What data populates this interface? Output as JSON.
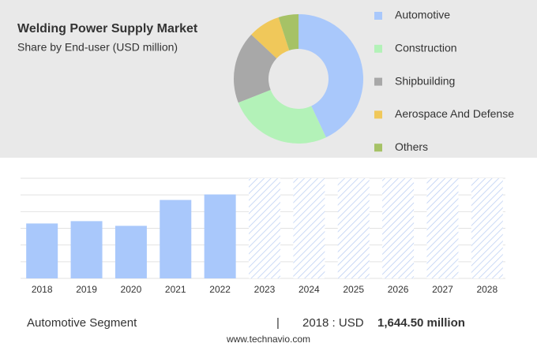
{
  "chart_data": [
    {
      "type": "pie",
      "title": "Welding Power Supply Market",
      "subtitle": "Share by End-user (USD million)",
      "categories": [
        "Automotive",
        "Construction",
        "Shipbuilding",
        "Aerospace And Defense",
        "Others"
      ],
      "values": [
        43,
        26,
        18,
        8,
        5
      ],
      "colors": [
        "#a9c8fb",
        "#b3f2b8",
        "#a8a8a8",
        "#f0c85a",
        "#a6c266"
      ],
      "legend": "right"
    },
    {
      "type": "bar",
      "categories": [
        "2018",
        "2019",
        "2020",
        "2021",
        "2022",
        "2023",
        "2024",
        "2025",
        "2026",
        "2027",
        "2028"
      ],
      "values": [
        1644.5,
        1715,
        1574,
        2349,
        2514,
        null,
        null,
        null,
        null,
        null,
        null
      ],
      "color": "#a9c8fb",
      "ylim": [
        0,
        3000
      ],
      "grid": true
    }
  ],
  "footer": {
    "segment": "Automotive Segment",
    "separator": "|",
    "prefix": "2018 : USD",
    "value": "1,644.50 million",
    "source": "www.technavio.com"
  }
}
